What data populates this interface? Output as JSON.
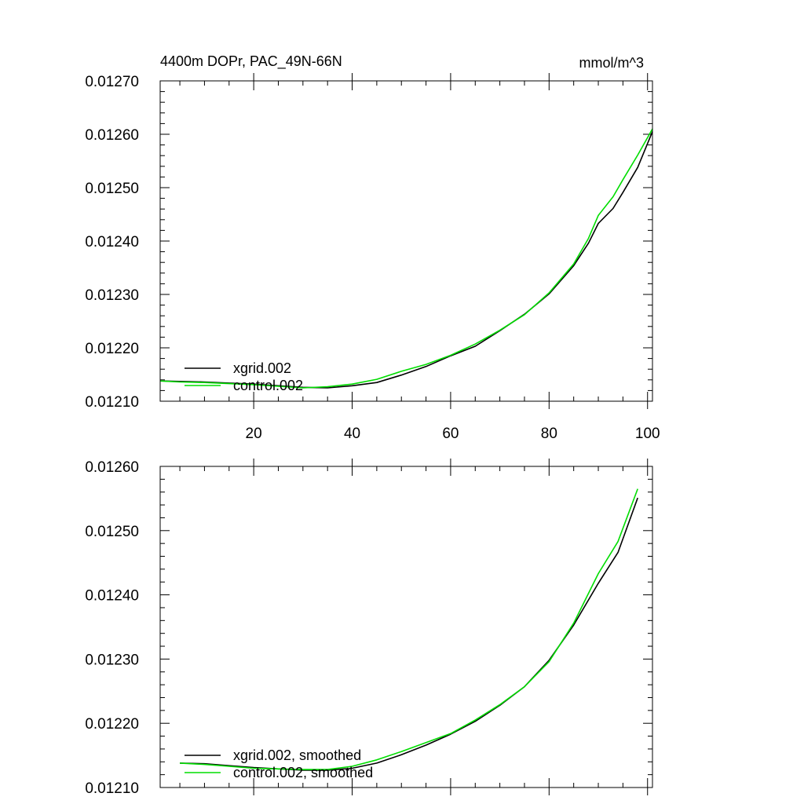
{
  "chart_data": [
    {
      "type": "line",
      "title": "4400m DOPr, PAC_49N-66N",
      "units": "mmol/m^3",
      "xlabel": "",
      "ylabel": "",
      "xlim": [
        1,
        101
      ],
      "ylim": [
        0.0121,
        0.0127
      ],
      "xticks": [
        20,
        40,
        60,
        80,
        100
      ],
      "xtick_labels": [
        "20",
        "40",
        "60",
        "80",
        "100"
      ],
      "yticks": [
        0.0121,
        0.0122,
        0.0123,
        0.0124,
        0.0125,
        0.0126,
        0.0127
      ],
      "ytick_labels": [
        "0.01210",
        "0.01220",
        "0.01230",
        "0.01240",
        "0.01250",
        "0.01260",
        "0.01270"
      ],
      "legend_position": "bottom-left",
      "series": [
        {
          "name": "xgrid.002",
          "color": "#000000",
          "x": [
            1,
            5,
            10,
            15,
            20,
            25,
            30,
            35,
            40,
            45,
            50,
            55,
            60,
            65,
            70,
            75,
            80,
            85,
            88,
            90,
            93,
            95,
            98,
            101
          ],
          "y": [
            0.012138,
            0.012137,
            0.012136,
            0.012134,
            0.012132,
            0.012129,
            0.012126,
            0.012125,
            0.012129,
            0.012135,
            0.012149,
            0.012165,
            0.012185,
            0.012203,
            0.012232,
            0.012263,
            0.012301,
            0.012354,
            0.012396,
            0.012433,
            0.012461,
            0.012491,
            0.012538,
            0.012605
          ]
        },
        {
          "name": "control.002",
          "color": "#00dd00",
          "x": [
            1,
            5,
            10,
            15,
            20,
            25,
            30,
            35,
            40,
            45,
            50,
            55,
            60,
            65,
            70,
            75,
            80,
            85,
            88,
            90,
            93,
            95,
            98,
            101
          ],
          "y": [
            0.012138,
            0.012136,
            0.012135,
            0.012133,
            0.012131,
            0.012128,
            0.012125,
            0.012127,
            0.012132,
            0.012141,
            0.012156,
            0.012169,
            0.012186,
            0.012207,
            0.012233,
            0.012262,
            0.012303,
            0.012357,
            0.012405,
            0.012448,
            0.012483,
            0.012515,
            0.012561,
            0.01261
          ]
        }
      ]
    },
    {
      "type": "line",
      "title": "",
      "xlabel": "",
      "ylabel": "",
      "xlim": [
        1,
        101
      ],
      "ylim": [
        0.0121,
        0.0126
      ],
      "xticks": [
        20,
        40,
        60,
        80,
        100
      ],
      "xtick_labels": [],
      "yticks": [
        0.0121,
        0.0122,
        0.0123,
        0.0124,
        0.0125,
        0.0126
      ],
      "ytick_labels": [
        "0.01210",
        "0.01220",
        "0.01230",
        "0.01240",
        "0.01250",
        "0.01260"
      ],
      "legend_position": "bottom-left",
      "series": [
        {
          "name": "xgrid.002, smoothed",
          "color": "#000000",
          "x": [
            5,
            10,
            15,
            20,
            25,
            30,
            35,
            40,
            45,
            50,
            55,
            60,
            65,
            70,
            75,
            80,
            85,
            90,
            94,
            98
          ],
          "y": [
            0.012138,
            0.012137,
            0.012134,
            0.012131,
            0.012129,
            0.012127,
            0.012127,
            0.01213,
            0.012138,
            0.012151,
            0.012166,
            0.012183,
            0.012203,
            0.012228,
            0.012257,
            0.012298,
            0.012353,
            0.012418,
            0.012466,
            0.012551
          ]
        },
        {
          "name": "control.002, smoothed",
          "color": "#00dd00",
          "x": [
            5,
            10,
            15,
            20,
            25,
            30,
            35,
            40,
            45,
            50,
            55,
            60,
            65,
            70,
            75,
            80,
            85,
            90,
            94,
            98
          ],
          "y": [
            0.012138,
            0.012136,
            0.012133,
            0.01213,
            0.012129,
            0.012128,
            0.012128,
            0.012133,
            0.012143,
            0.012156,
            0.01217,
            0.012184,
            0.012205,
            0.012229,
            0.012257,
            0.012296,
            0.012356,
            0.012433,
            0.012483,
            0.012565
          ]
        }
      ]
    }
  ]
}
